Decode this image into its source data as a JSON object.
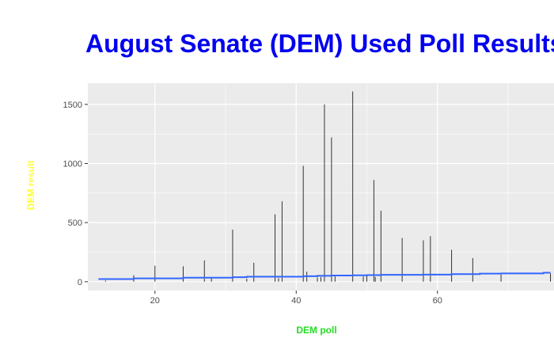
{
  "chart_data": {
    "type": "line",
    "title": "August Senate (DEM) Used Poll Results",
    "xlabel": "DEM poll",
    "ylabel": "DEM result",
    "colors": {
      "title": "#0000ee",
      "xlabel": "#22dd22",
      "ylabel": "#ffff33",
      "panel": "#ebebeb",
      "grid": "#ffffff",
      "spikes": "#333333",
      "trend": "#3366ff"
    },
    "grid": true,
    "xlim": [
      10.5,
      76.5
    ],
    "ylim": [
      -75,
      1680
    ],
    "x_ticks": [
      20,
      40,
      60
    ],
    "y_ticks": [
      0,
      500,
      1000,
      1500
    ],
    "series": [
      {
        "type": "vertical-lines",
        "x": [
          13,
          17,
          20,
          24,
          27,
          28,
          31,
          33,
          34,
          37,
          37.5,
          38,
          41,
          41.5,
          43,
          43.5,
          44,
          45,
          45.5,
          48,
          49.5,
          50,
          51,
          51.2,
          52,
          55,
          58,
          59,
          62,
          65,
          69,
          76
        ],
        "values": [
          10,
          55,
          135,
          130,
          180,
          30,
          440,
          25,
          160,
          570,
          30,
          680,
          980,
          85,
          35,
          40,
          1500,
          1220,
          45,
          1610,
          45,
          55,
          860,
          40,
          600,
          370,
          350,
          385,
          270,
          200,
          60,
          70
        ]
      },
      {
        "type": "step-trend",
        "x": [
          12,
          17,
          24,
          31,
          33,
          41,
          43,
          45,
          48,
          50,
          52,
          58,
          62,
          66,
          69,
          75,
          76
        ],
        "values": [
          22,
          28,
          34,
          38,
          42,
          46,
          50,
          52,
          54,
          56,
          58,
          60,
          64,
          68,
          70,
          76,
          76
        ]
      }
    ]
  }
}
